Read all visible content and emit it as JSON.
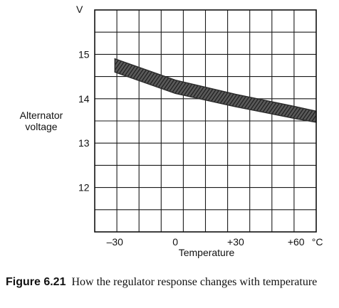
{
  "chart_data": {
    "type": "area",
    "xlabel": "Temperature",
    "xunit": "°C",
    "ylabel": "Alternator voltage",
    "yunit": "V",
    "xlim": [
      -40,
      70
    ],
    "ylim": [
      11,
      16
    ],
    "x_ticks": [
      {
        "value": -30,
        "label": "–30"
      },
      {
        "value": 0,
        "label": "0"
      },
      {
        "value": 30,
        "label": "+30"
      },
      {
        "value": 60,
        "label": "+60"
      }
    ],
    "y_ticks": [
      {
        "value": 15,
        "label": "15"
      },
      {
        "value": 14,
        "label": "14"
      },
      {
        "value": 13,
        "label": "13"
      },
      {
        "value": 12,
        "label": "12"
      }
    ],
    "grid": true,
    "series": [
      {
        "x": [
          -30,
          0,
          30,
          60,
          70
        ],
        "upper": [
          14.9,
          14.42,
          14.1,
          13.82,
          13.72
        ],
        "lower": [
          14.6,
          14.12,
          13.82,
          13.55,
          13.47
        ],
        "color": "#2b2b2b"
      }
    ]
  },
  "caption": {
    "label": "Figure 6.21",
    "text": "How the regulator response changes with temperature"
  }
}
